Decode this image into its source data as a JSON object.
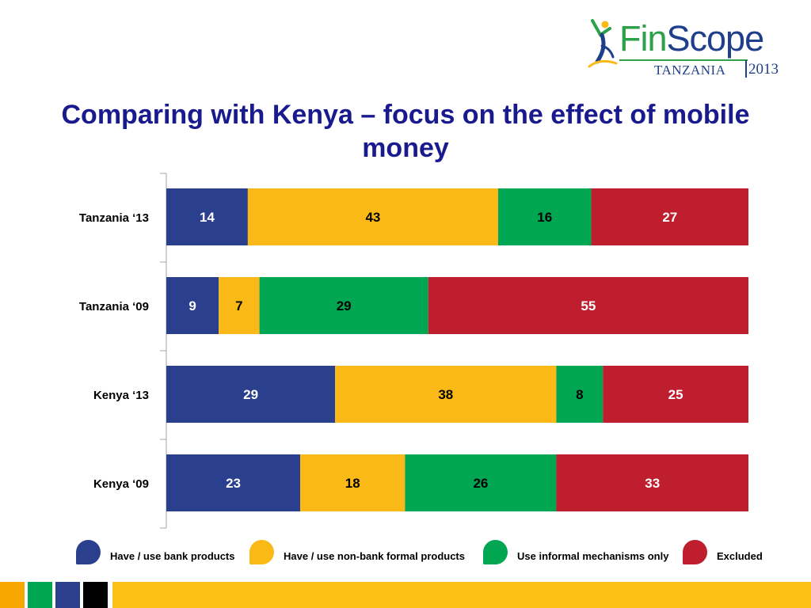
{
  "logo": {
    "word_part1": "Fin",
    "word_part2": "Scope",
    "country": "TANZANIA",
    "year": "2013"
  },
  "title": "Comparing with Kenya – focus on the effect of mobile money",
  "colors": {
    "bank": "#2b3f8f",
    "nonbank": "#fbb918",
    "informal": "#00a651",
    "excluded": "#be1e2d",
    "footer_yellow": "#fdc014",
    "footer_orange": "#f7a700",
    "footer_green": "#00a651",
    "footer_navy": "#2b3f8f",
    "footer_black": "#000000"
  },
  "chart_data": {
    "type": "bar",
    "orientation": "horizontal",
    "stacked": true,
    "title": "Comparing with Kenya – focus on the effect of mobile money",
    "categories": [
      "Tanzania ‘13",
      "Tanzania ‘09",
      "Kenya ‘13",
      "Kenya ‘09"
    ],
    "series": [
      {
        "name": "Have / use bank products",
        "color": "#2b3f8f",
        "label_color": "#ffffff",
        "values": [
          14,
          9,
          29,
          23
        ]
      },
      {
        "name": "Have / use non-bank formal products",
        "color": "#fbb918",
        "label_color": "#000000",
        "values": [
          43,
          7,
          38,
          18
        ]
      },
      {
        "name": "Use informal mechanisms only",
        "color": "#00a651",
        "label_color": "#000000",
        "values": [
          16,
          29,
          8,
          26
        ]
      },
      {
        "name": "Excluded",
        "color": "#be1e2d",
        "label_color": "#ffffff",
        "values": [
          27,
          55,
          25,
          33
        ]
      }
    ],
    "xlim": [
      0,
      100
    ],
    "grid": false,
    "legend_position": "bottom"
  }
}
